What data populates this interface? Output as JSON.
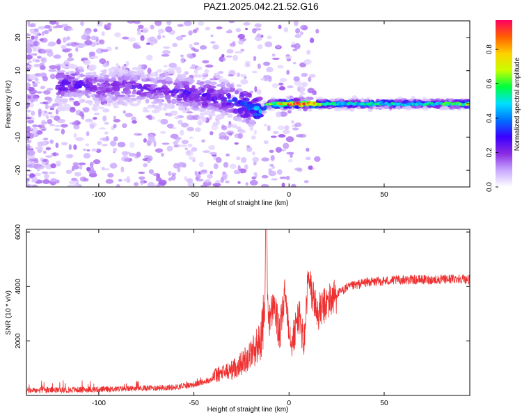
{
  "title": "PAZ1.2025.042.21.52.G16",
  "colors": {
    "snr_line": "#ee3030",
    "frame": "#000000",
    "colormap": [
      "#ffffff",
      "#c8a8ff",
      "#8a2be2",
      "#3a00ff",
      "#0070ff",
      "#00e0ff",
      "#00ff40",
      "#c8ff00",
      "#ffd000",
      "#ff6000",
      "#ff0060"
    ]
  },
  "chart_data": [
    {
      "type": "heatmap",
      "xlabel": "Height of straight line (km)",
      "ylabel": "Frequency (Hz)",
      "xlim": [
        -138,
        95
      ],
      "ylim": [
        -25,
        25
      ],
      "xticks": [
        -100,
        -50,
        0,
        50
      ],
      "yticks": [
        -20,
        -10,
        0,
        10,
        20
      ],
      "colorbar": {
        "label": "Normalized spectral amplitude",
        "range": [
          0,
          0.97
        ],
        "ticks": [
          "0.0",
          "0.2",
          "0.4",
          "0.6",
          "0.8"
        ]
      },
      "ridge": {
        "heights": [
          -120,
          -110,
          -100,
          -90,
          -80,
          -70,
          -60,
          -50,
          -40,
          -30,
          -20,
          -15,
          -10,
          -5,
          0,
          5,
          10,
          20,
          30,
          50,
          70,
          90
        ],
        "frequency": [
          6,
          6,
          5,
          5,
          5,
          4,
          4,
          3,
          2,
          1,
          -1,
          -2,
          0,
          0,
          0,
          0,
          0,
          0,
          0,
          0,
          0,
          0
        ],
        "amplitude": [
          0.3,
          0.28,
          0.25,
          0.25,
          0.25,
          0.25,
          0.28,
          0.3,
          0.32,
          0.35,
          0.45,
          0.5,
          0.6,
          0.7,
          0.85,
          0.9,
          0.9,
          0.55,
          0.5,
          0.5,
          0.5,
          0.6
        ]
      }
    },
    {
      "type": "line",
      "xlabel": "Height of straight line (km)",
      "ylabel": "SNR (10 * v/v)",
      "xlim": [
        -138,
        95
      ],
      "ylim": [
        0,
        6100
      ],
      "xticks": [
        -100,
        -50,
        0,
        50
      ],
      "yticks": [
        2000,
        4000,
        6000
      ],
      "series": [
        {
          "x": [
            -138,
            -120,
            -100,
            -80,
            -60,
            -50,
            -40,
            -30,
            -25,
            -20,
            -15,
            -13,
            -12,
            -11,
            -10,
            -8,
            -5,
            -2,
            0,
            2,
            5,
            8,
            10,
            15,
            20,
            25,
            30,
            40,
            50,
            60,
            70,
            80,
            90,
            95
          ],
          "values": [
            180,
            200,
            220,
            260,
            300,
            400,
            600,
            800,
            1000,
            1300,
            1700,
            2500,
            6100,
            3000,
            2800,
            3400,
            2200,
            3800,
            2500,
            2000,
            3000,
            1900,
            4300,
            3000,
            3400,
            3700,
            3950,
            4150,
            4200,
            4250,
            4250,
            4250,
            4300,
            4250
          ]
        }
      ]
    }
  ]
}
